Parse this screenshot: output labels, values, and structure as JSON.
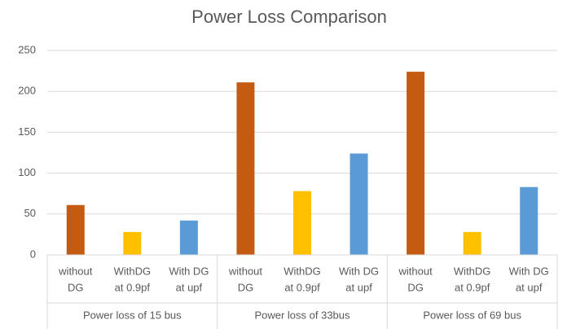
{
  "chart_data": {
    "type": "bar",
    "title": "Power Loss Comparison",
    "groups": [
      "Power loss of 15 bus",
      "Power loss of 33bus",
      "Power loss of 69 bus"
    ],
    "categories": [
      [
        "without",
        "DG"
      ],
      [
        "WithDG",
        "at 0.9pf"
      ],
      [
        "With DG",
        "at upf"
      ]
    ],
    "colors": [
      "#c55a11",
      "#ffc000",
      "#5b9bd5"
    ],
    "values": [
      [
        61,
        28,
        42
      ],
      [
        211,
        78,
        124
      ],
      [
        224,
        28,
        83
      ]
    ],
    "ylim": [
      0,
      250
    ],
    "yticks": [
      0,
      50,
      100,
      150,
      200,
      250
    ],
    "grid": true
  }
}
